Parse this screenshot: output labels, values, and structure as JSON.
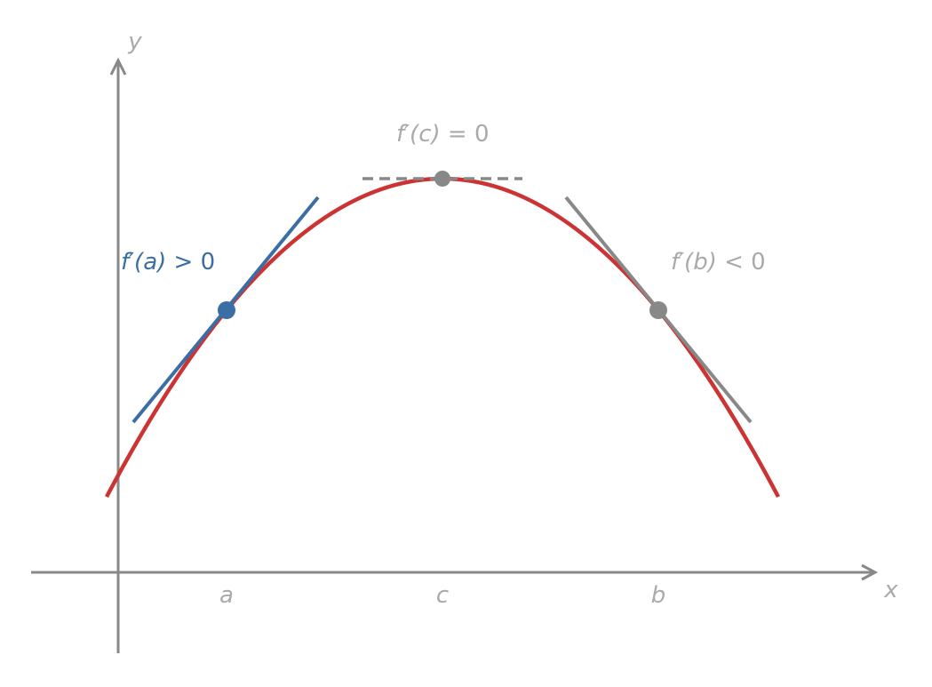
{
  "axes": {
    "x": "x",
    "y": "y"
  },
  "points": [
    {
      "name": "a",
      "func": "f′(a)",
      "relation": "> 0"
    },
    {
      "name": "c",
      "func": "f′(c)",
      "relation": "= 0"
    },
    {
      "name": "b",
      "func": "f′(b)",
      "relation": "< 0"
    }
  ]
}
